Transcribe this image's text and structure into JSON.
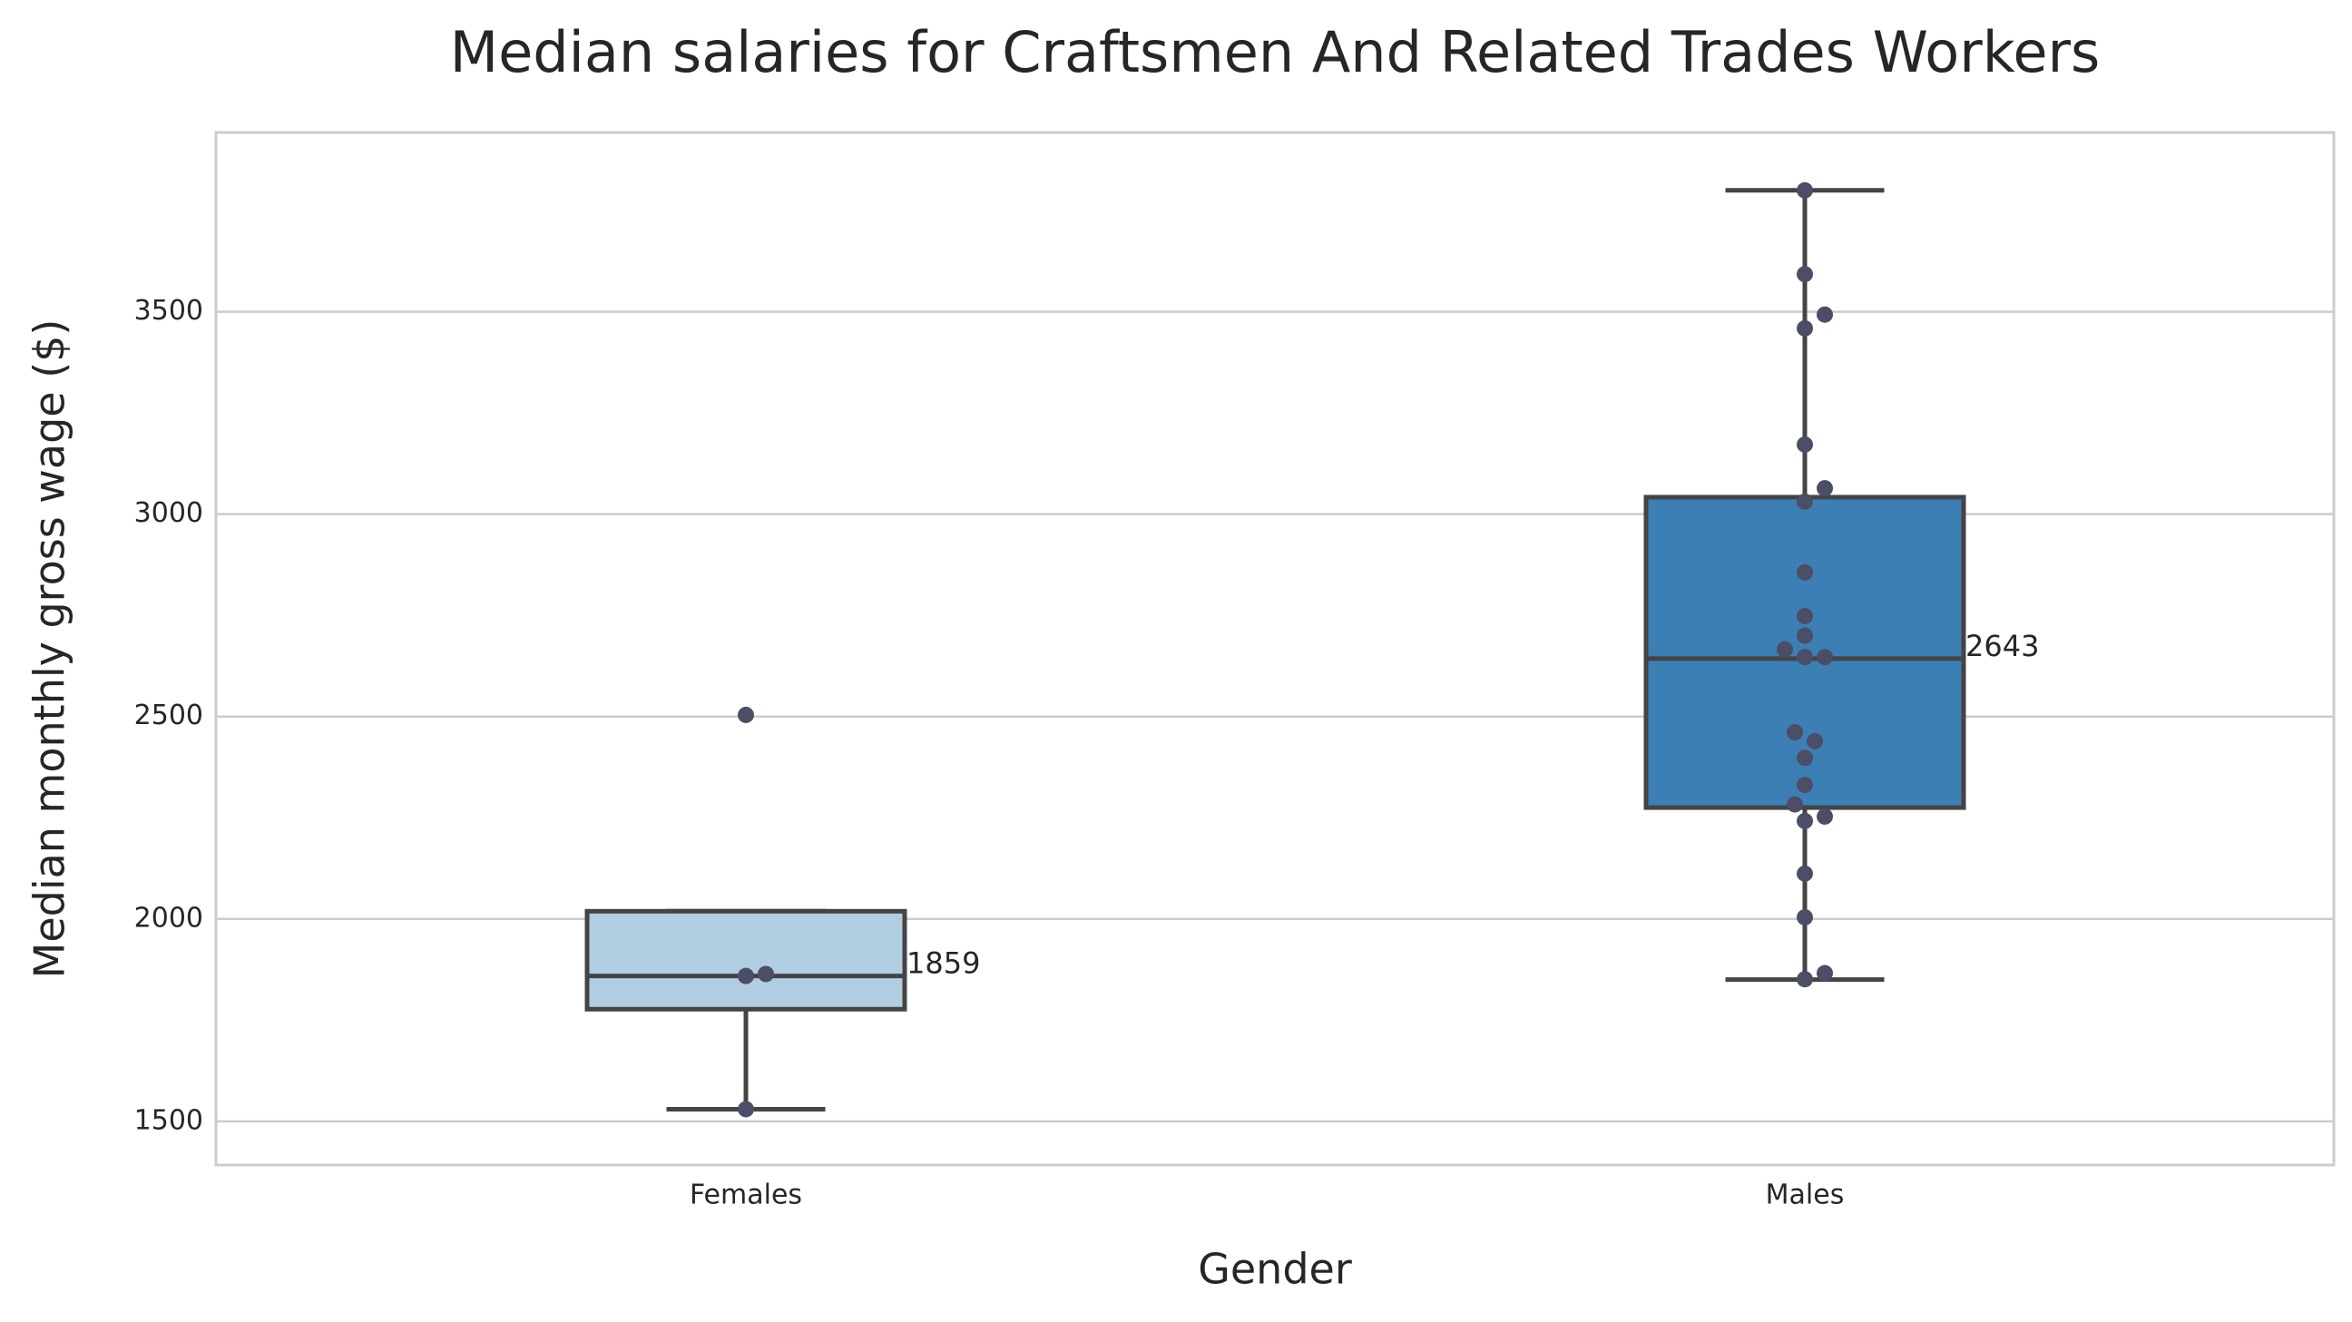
{
  "chart_data": {
    "type": "box",
    "title": "Median salaries for Craftsmen And Related Trades Workers",
    "x_label": "Gender",
    "y_label": "Median monthly gross wage ($)",
    "categories": [
      "Females",
      "Males"
    ],
    "colors": [
      "#b0cde1",
      "#3c7fb4"
    ],
    "point_color": "#4b4e66",
    "boxes": [
      {
        "whislo": 1530,
        "q1": 1777,
        "median": 1859,
        "q3": 2019,
        "whishi": 2019
      },
      {
        "whislo": 1850,
        "q1": 2275,
        "median": 2643,
        "q3": 3042,
        "whishi": 3800
      }
    ],
    "points": [
      [
        1530,
        1859,
        1864,
        2504
      ],
      [
        1851,
        1866,
        2004,
        2112,
        2242,
        2253,
        2283,
        2331,
        2398,
        2439,
        2461,
        2647,
        2647,
        2666,
        2700,
        2748,
        2856,
        3031,
        3064,
        3172,
        3459,
        3493,
        3593,
        3800
      ]
    ],
    "ylim": [
      1392,
      3943
    ],
    "yticks": [
      1500,
      2000,
      2500,
      3000,
      3500
    ],
    "grid": true
  }
}
